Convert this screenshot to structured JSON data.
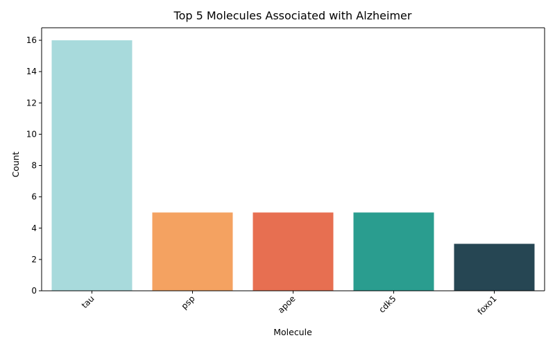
{
  "chart_data": {
    "type": "bar",
    "title": "Top 5 Molecules Associated with Alzheimer",
    "xlabel": "Molecule",
    "ylabel": "Count",
    "categories": [
      "tau",
      "psp",
      "apoe",
      "cdk5",
      "foxo1"
    ],
    "values": [
      16,
      5,
      5,
      5,
      3
    ],
    "colors": [
      "#a8dadc",
      "#f4a261",
      "#e76f51",
      "#2a9d8f",
      "#264653"
    ],
    "ylim": [
      0,
      16.8
    ],
    "yticks": [
      0,
      2,
      4,
      6,
      8,
      10,
      12,
      14,
      16
    ],
    "grid": false,
    "legend": "none"
  }
}
